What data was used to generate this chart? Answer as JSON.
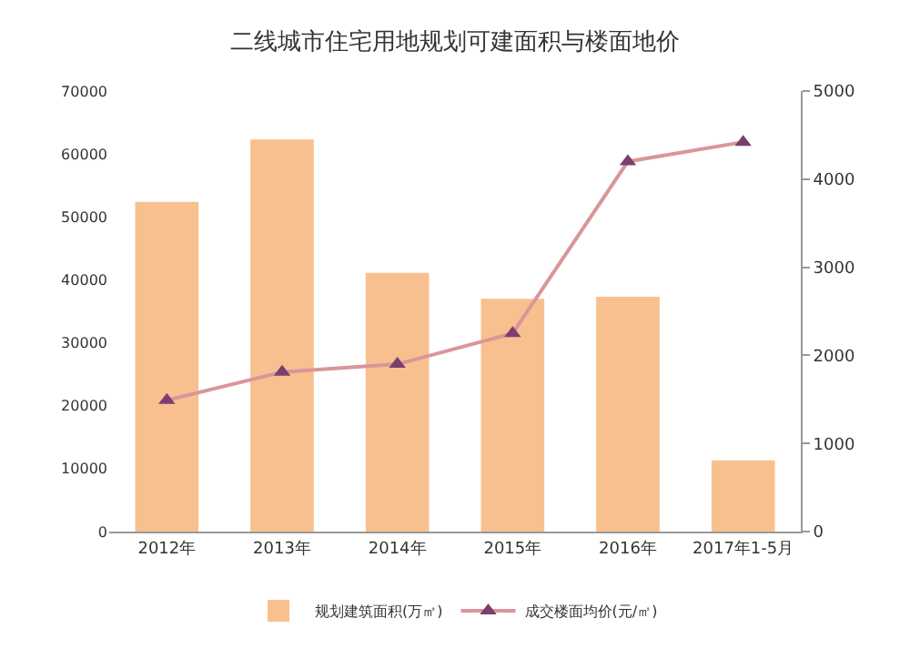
{
  "chart_data": {
    "type": "bar",
    "title": "二线城市住宅用地规划可建面积与楼面地价",
    "categories": [
      "2012年",
      "2013年",
      "2014年",
      "2015年",
      "2016年",
      "2017年1-5月"
    ],
    "series": [
      {
        "name": "规划建筑面积(万㎡)",
        "color": "#f9c08f",
        "values": [
          52400,
          62300,
          41100,
          37000,
          37300,
          11300
        ]
      },
      {
        "name": "成交楼面均价(元/㎡)",
        "type": "line",
        "axis": "y2",
        "color": "#d9969a",
        "marker": "triangle",
        "values": [
          1490,
          1810,
          1900,
          2250,
          4200,
          4420
        ]
      }
    ],
    "ylim": [
      0,
      70000
    ],
    "yticks": [
      0,
      10000,
      20000,
      30000,
      40000,
      50000,
      60000,
      70000
    ],
    "y2lim": [
      0,
      5000
    ],
    "y2ticks": [
      0,
      1000,
      2000,
      3000,
      4000,
      5000
    ],
    "grid": false,
    "legend": "bottom"
  }
}
